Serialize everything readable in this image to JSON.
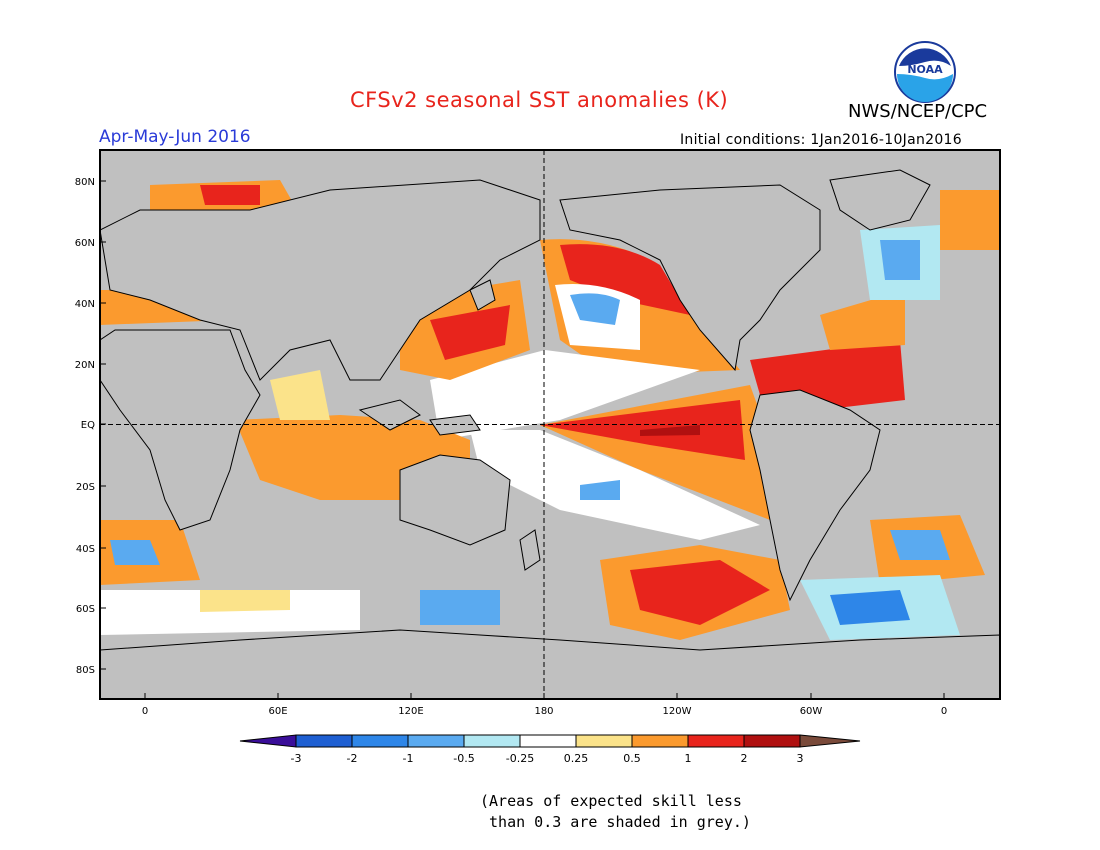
{
  "header": {
    "title": "CFSv2 seasonal SST anomalies (K)",
    "agency": "NWS/NCEP/CPC",
    "period": "Apr-May-Jun 2016",
    "initial_conditions": "Initial conditions: 1Jan2016-10Jan2016",
    "logo_text": "NOAA"
  },
  "map": {
    "lat_labels": [
      "80N",
      "60N",
      "40N",
      "20N",
      "EQ",
      "20S",
      "40S",
      "60S",
      "80S"
    ],
    "lon_labels": [
      "0",
      "60E",
      "120E",
      "180",
      "120W",
      "60W",
      "0"
    ],
    "colors": {
      "land": "#c0c0c0",
      "grid_line": "#000000",
      "coast": "#000000"
    }
  },
  "colorbar": {
    "tick_labels": [
      "-3",
      "-2",
      "-1",
      "-0.5",
      "-0.25",
      "0.25",
      "0.5",
      "1",
      "2",
      "3"
    ],
    "colors": [
      "#3a0e99",
      "#1e5fd2",
      "#2e86e8",
      "#5aaaf0",
      "#b2e8f2",
      "#ffffff",
      "#fbe38a",
      "#fb9a2e",
      "#e8241c",
      "#b01010",
      "#7a4a3a"
    ]
  },
  "note": {
    "line1": "(Areas of expected skill less",
    "line2": " than 0.3 are shaded in grey.)"
  }
}
